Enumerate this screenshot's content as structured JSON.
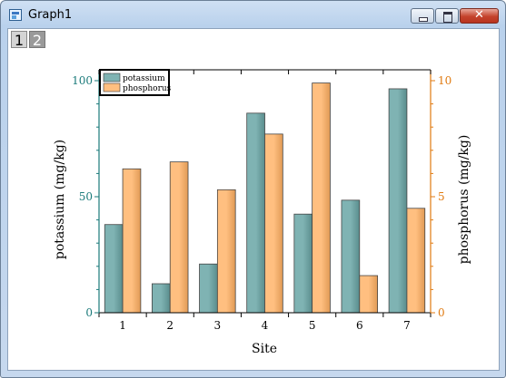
{
  "window": {
    "title": "Graph1",
    "controls": {
      "minimize": "minimize",
      "maximize": "maximize",
      "close": "✕"
    }
  },
  "layer_tabs": [
    "1",
    "2"
  ],
  "colors": {
    "potassium": "#7fb3b3",
    "phosphorus": "#ffbf80",
    "left_axis": "#1a7a7a",
    "right_axis": "#e07a10"
  },
  "chart_data": {
    "type": "bar",
    "categories": [
      "1",
      "2",
      "3",
      "4",
      "5",
      "6",
      "7"
    ],
    "series": [
      {
        "name": "potassium",
        "axis": "left",
        "values": [
          38,
          12.5,
          21,
          86,
          42.5,
          48.5,
          96.5
        ]
      },
      {
        "name": "phosphorus",
        "axis": "right",
        "values": [
          6.2,
          6.5,
          5.3,
          7.7,
          9.9,
          1.6,
          4.5
        ]
      }
    ],
    "xlabel": "Site",
    "ylabel": "potassium (mg/kg)",
    "y2label": "phosphorus (mg/kg)",
    "ylim": [
      0,
      100
    ],
    "y2lim": [
      0,
      10
    ],
    "yticks": [
      "0",
      "50",
      "100"
    ],
    "y2ticks": [
      "0",
      "5",
      "10"
    ],
    "grid": false,
    "legend_position": "top-left"
  }
}
